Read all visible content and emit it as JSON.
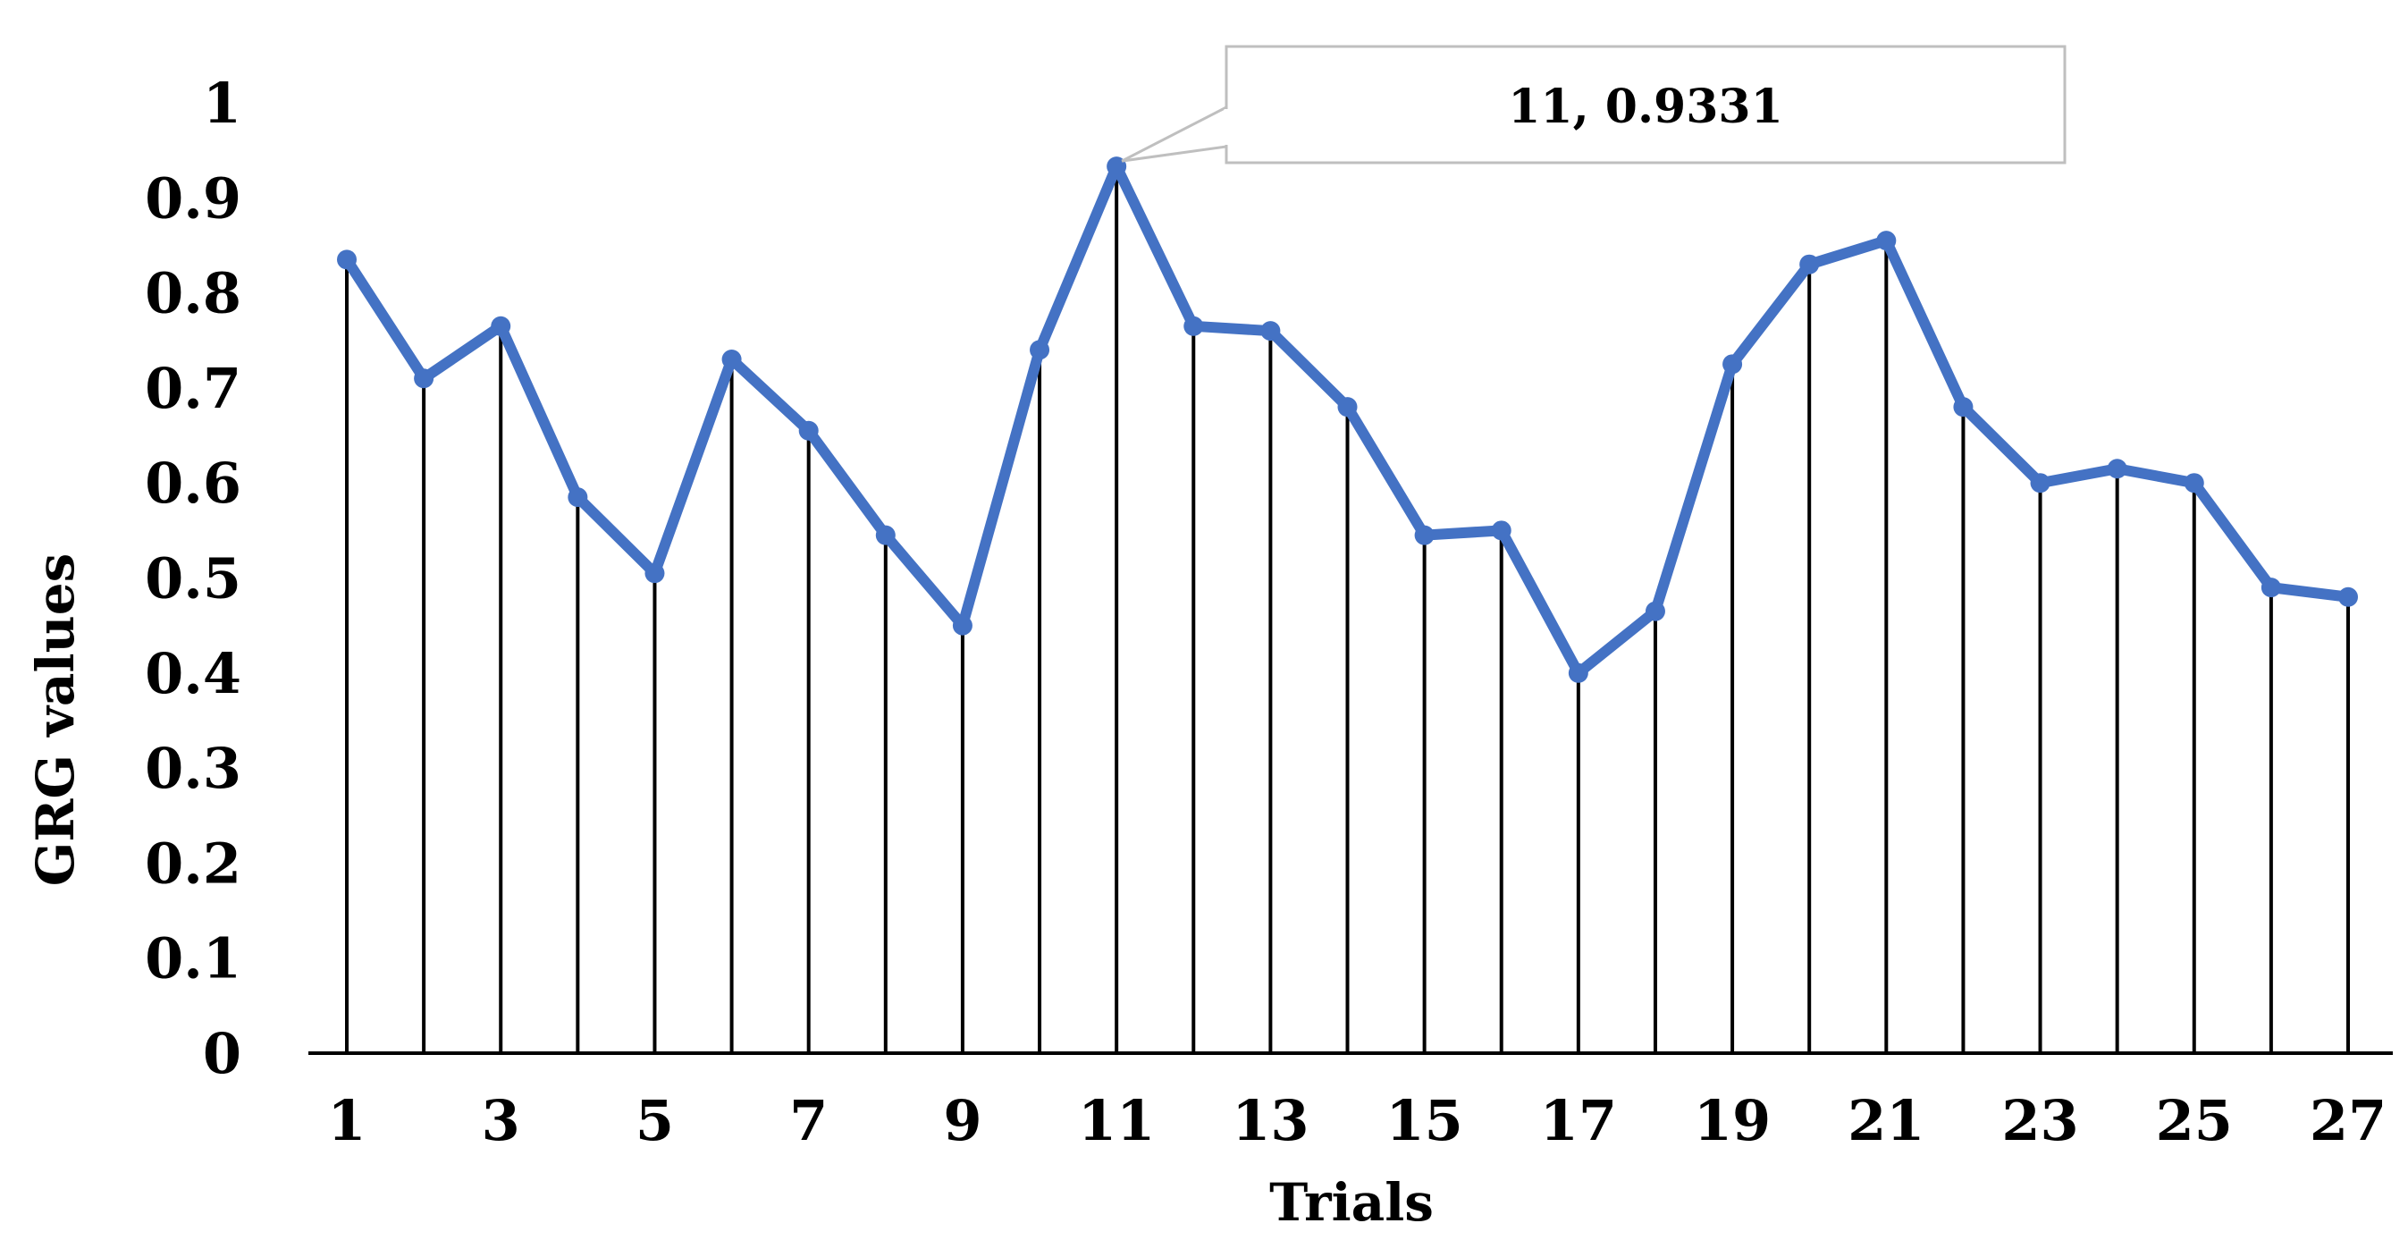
{
  "chart_data": {
    "type": "line",
    "title": "",
    "xlabel": "Trials",
    "ylabel": "GRG values",
    "x": [
      1,
      2,
      3,
      4,
      5,
      6,
      7,
      8,
      9,
      10,
      11,
      12,
      13,
      14,
      15,
      16,
      17,
      18,
      19,
      20,
      21,
      22,
      23,
      24,
      25,
      26,
      27
    ],
    "x_tick_labels": [
      "1",
      "3",
      "5",
      "7",
      "9",
      "11",
      "13",
      "15",
      "17",
      "19",
      "21",
      "23",
      "25",
      "27"
    ],
    "y_tick_labels": [
      "0",
      "0.1",
      "0.2",
      "0.3",
      "0.4",
      "0.5",
      "0.6",
      "0.7",
      "0.8",
      "0.9",
      "1"
    ],
    "ylim": [
      0,
      1
    ],
    "xlim": [
      1,
      27
    ],
    "grid": false,
    "drop_lines": true,
    "series": [
      {
        "color": "#4472C4",
        "values": [
          0.835,
          0.71,
          0.765,
          0.585,
          0.505,
          0.73,
          0.655,
          0.545,
          0.45,
          0.74,
          0.9331,
          0.765,
          0.76,
          0.68,
          0.545,
          0.55,
          0.4,
          0.465,
          0.725,
          0.83,
          0.855,
          0.68,
          0.6,
          0.615,
          0.6,
          0.49,
          0.48
        ]
      }
    ],
    "annotations": [
      {
        "text": "11, 0.9331",
        "x": 11,
        "y": 0.9331
      }
    ]
  }
}
